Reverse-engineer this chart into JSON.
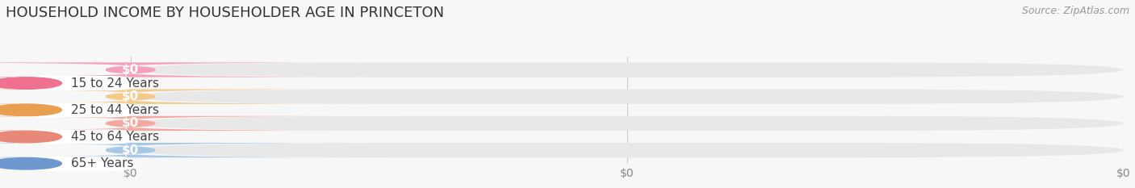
{
  "title": "HOUSEHOLD INCOME BY HOUSEHOLDER AGE IN PRINCETON",
  "source": "Source: ZipAtlas.com",
  "categories": [
    "15 to 24 Years",
    "25 to 44 Years",
    "45 to 64 Years",
    "65+ Years"
  ],
  "values": [
    0,
    0,
    0,
    0
  ],
  "bar_colors": [
    "#f5a0b8",
    "#f5c98a",
    "#f5a8a0",
    "#a8c8e8"
  ],
  "dot_colors": [
    "#f07090",
    "#e8a050",
    "#e88878",
    "#7098d0"
  ],
  "bg_color": "#f7f7f7",
  "row_bg_color": "#e8e8e8",
  "title_color": "#333333",
  "source_color": "#999999",
  "tick_label_color": "#888888",
  "title_fontsize": 13,
  "source_fontsize": 9,
  "label_fontsize": 11,
  "tick_fontsize": 10,
  "category_fontsize": 11,
  "x_tick_positions": [
    0.0,
    0.5,
    1.0
  ],
  "x_tick_labels": [
    "$0",
    "$0",
    "$0"
  ]
}
